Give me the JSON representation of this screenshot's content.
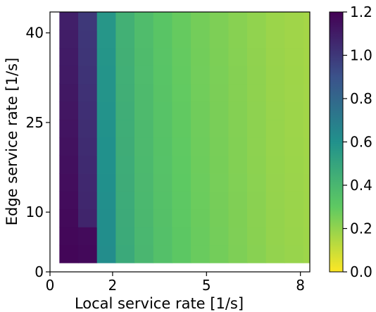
{
  "chart_data": {
    "type": "heatmap",
    "xlabel": "Local service rate [1/s]",
    "ylabel": "Edge service rate [1/s]",
    "xlim": [
      0,
      8.3
    ],
    "ylim": [
      0,
      43.5
    ],
    "x_ticks": [
      0,
      2,
      5,
      8
    ],
    "y_ticks": [
      0,
      10,
      25,
      40
    ],
    "x_tick_labels": [
      "0",
      "2",
      "5",
      "8"
    ],
    "y_tick_labels": [
      "0",
      "10",
      "25",
      "40"
    ],
    "x_edges": [
      0.3,
      0.9,
      1.5,
      2.1,
      2.7,
      3.3,
      3.9,
      4.5,
      5.1,
      5.7,
      6.3,
      6.9,
      7.5,
      8.1,
      8.3
    ],
    "y_edges": [
      1.5,
      4.5,
      7.5,
      10.5,
      13.5,
      16.5,
      19.5,
      22.5,
      25.5,
      28.5,
      31.5,
      34.5,
      37.5,
      40.5,
      43.5
    ],
    "column_values": [
      1.18,
      1.08,
      0.62,
      0.47,
      0.4,
      0.35,
      0.31,
      0.28,
      0.26,
      0.24,
      0.22,
      0.2,
      0.19,
      0.18,
      0.175
    ],
    "column_2_values_low_rows": [
      1.17,
      1.17
    ],
    "colorbar": {
      "colormap": "viridis_r",
      "range": [
        0.0,
        1.2
      ],
      "ticks": [
        0.0,
        0.2,
        0.4,
        0.6,
        0.8,
        1.0,
        1.2
      ],
      "tick_labels": [
        "0.0",
        "0.2",
        "0.4",
        "0.6",
        "0.8",
        "1.0",
        "1.2"
      ]
    }
  }
}
